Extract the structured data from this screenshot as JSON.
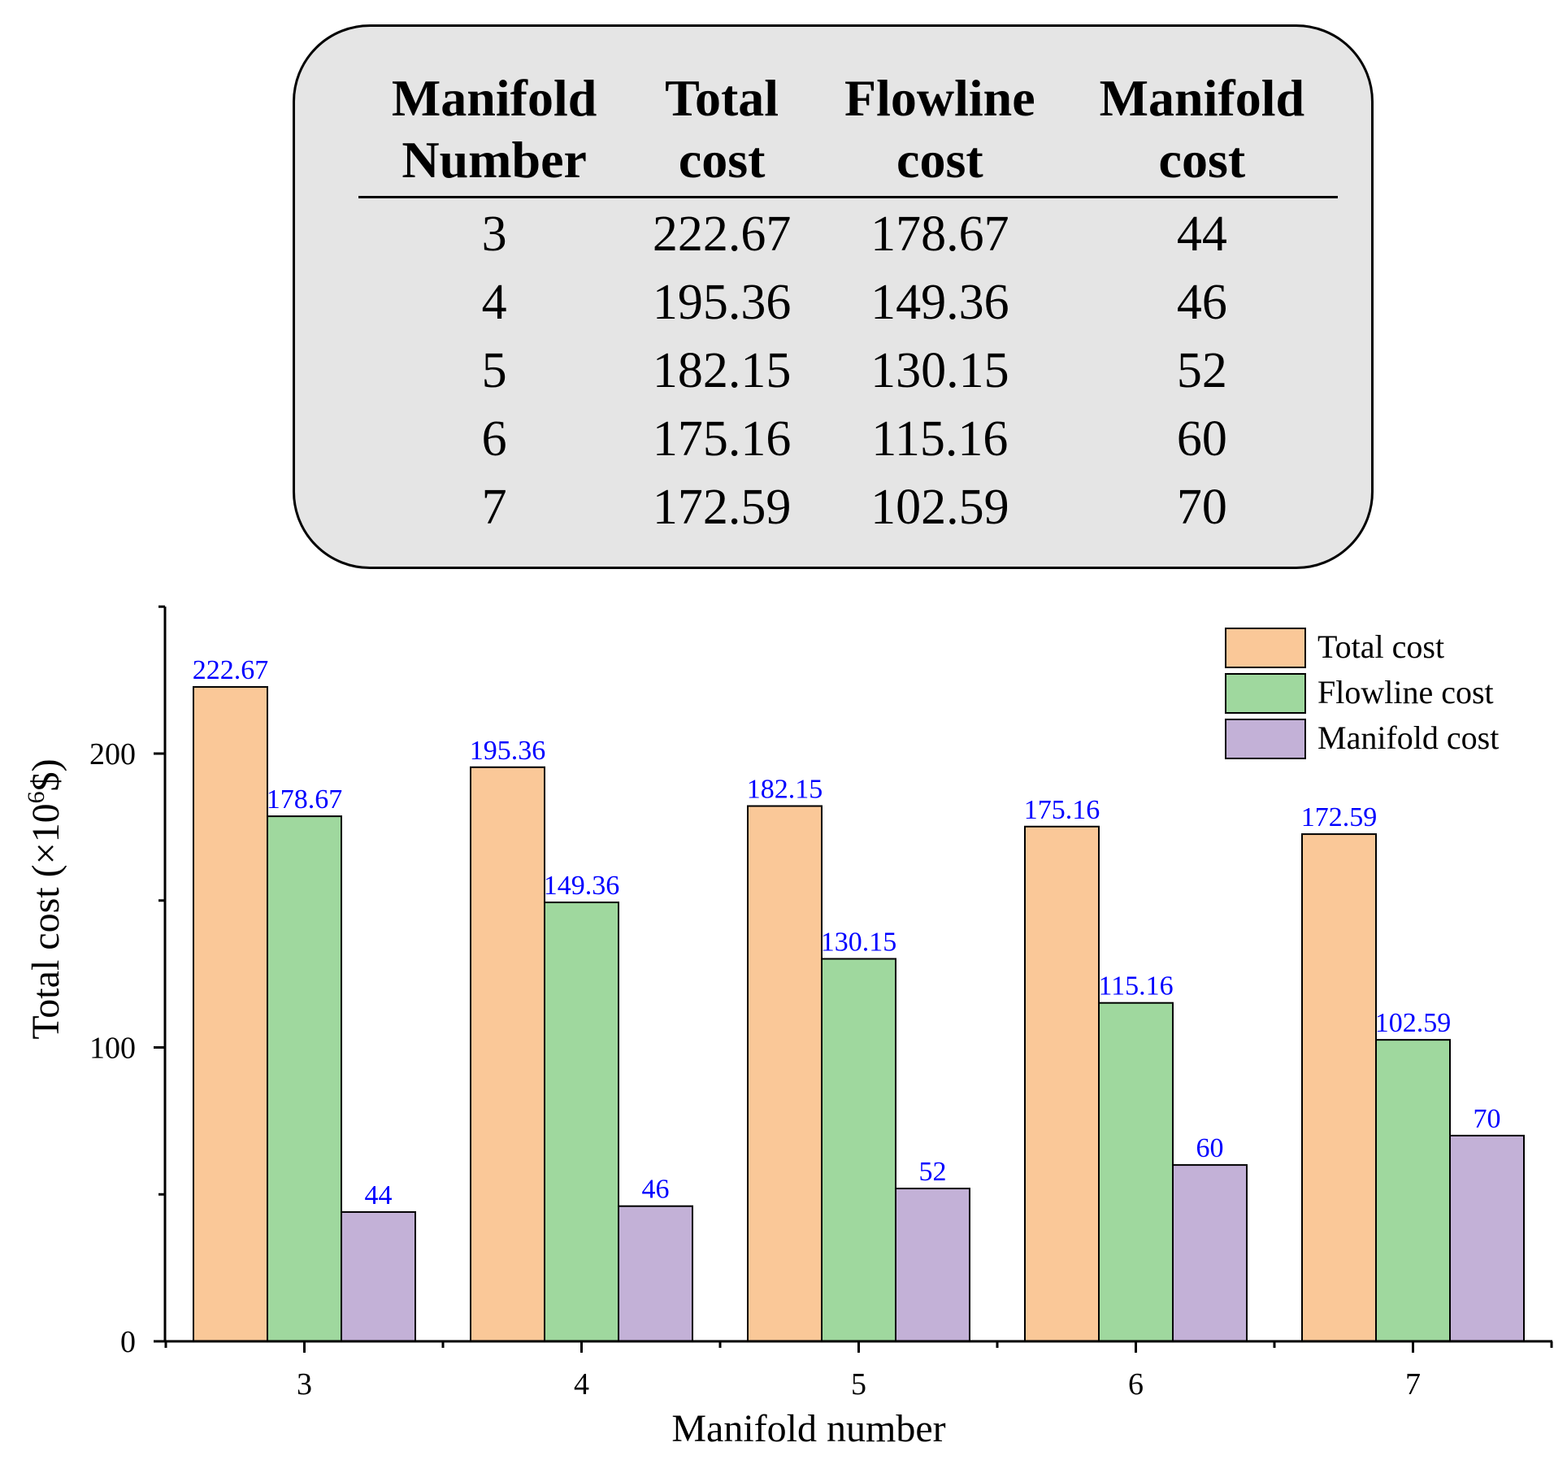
{
  "table": {
    "headers": [
      [
        "Manifold",
        "Number"
      ],
      [
        "Total",
        "cost"
      ],
      [
        "Flowline",
        "cost"
      ],
      [
        "Manifold",
        "cost"
      ]
    ],
    "rows": [
      [
        "3",
        "222.67",
        "178.67",
        "44"
      ],
      [
        "4",
        "195.36",
        "149.36",
        "46"
      ],
      [
        "5",
        "182.15",
        "130.15",
        "52"
      ],
      [
        "6",
        "175.16",
        "115.16",
        "60"
      ],
      [
        "7",
        "172.59",
        "102.59",
        "70"
      ]
    ]
  },
  "chart_data": {
    "type": "bar",
    "categories": [
      "3",
      "4",
      "5",
      "6",
      "7"
    ],
    "series": [
      {
        "name": "Total cost",
        "values": [
          222.67,
          195.36,
          182.15,
          175.16,
          172.59
        ],
        "labels": [
          "222.67",
          "195.36",
          "182.15",
          "175.16",
          "172.59"
        ],
        "color": "#fac898"
      },
      {
        "name": "Flowline cost",
        "values": [
          178.67,
          149.36,
          130.15,
          115.16,
          102.59
        ],
        "labels": [
          "178.67",
          "149.36",
          "130.15",
          "115.16",
          "102.59"
        ],
        "color": "#9fd89e"
      },
      {
        "name": "Manifold cost",
        "values": [
          44,
          46,
          52,
          60,
          70
        ],
        "labels": [
          "44",
          "46",
          "52",
          "60",
          "70"
        ],
        "color": "#c3b1d7"
      }
    ],
    "xlabel": "Manifold number",
    "ylabel_main": "Total cost (×10",
    "ylabel_sup": "6",
    "ylabel_end": "$)",
    "yticks": [
      0,
      100,
      200
    ],
    "ylim": [
      0,
      250
    ],
    "legend_position": "top-right",
    "label_color": "#0000ff"
  }
}
